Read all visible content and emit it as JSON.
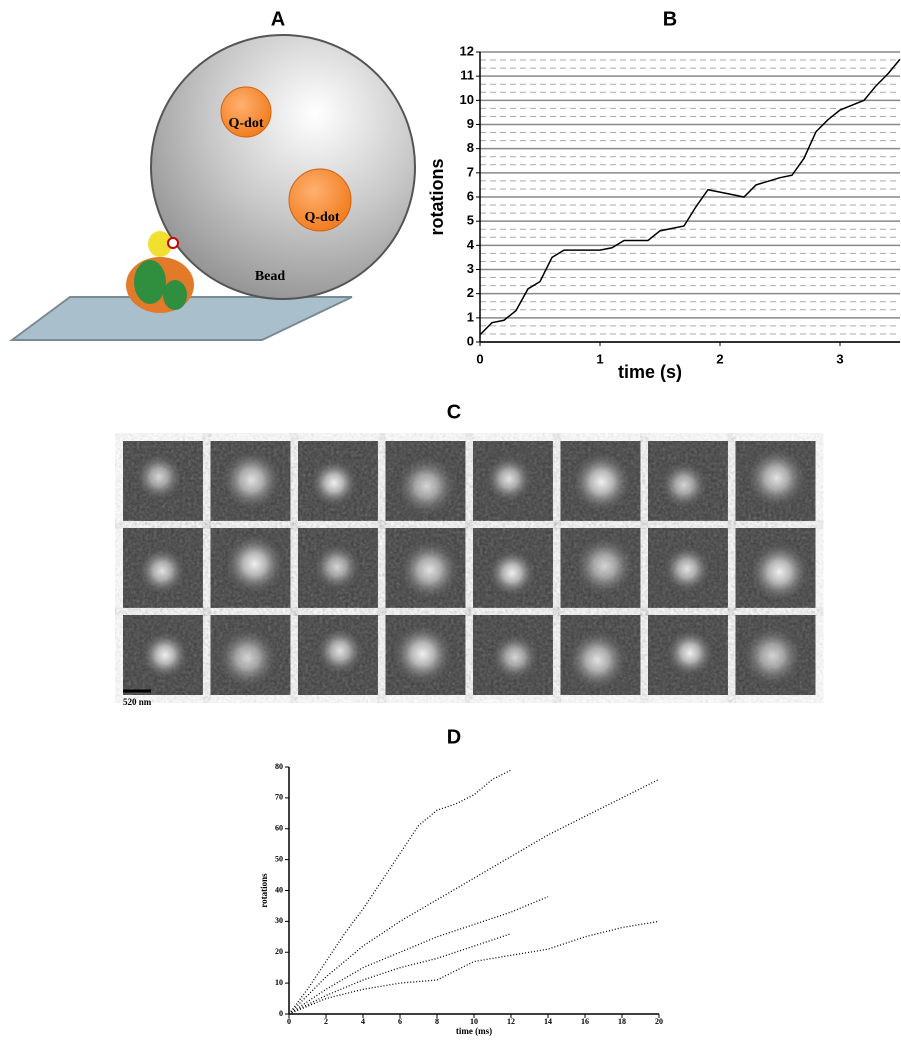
{
  "panels": {
    "a": "A",
    "c": "C"
  },
  "diagram": {
    "qdot_1": "Q-dot",
    "qdot_2": "Q-dot",
    "bead": "Bead"
  },
  "scale_bar": "520 nm",
  "chart_data": [
    {
      "type": "line",
      "title": "B",
      "x_label": "time (s)",
      "y_label": "rotations",
      "xlim": [
        0,
        3.5
      ],
      "xticks": [
        0,
        1,
        2,
        3
      ],
      "ylim": [
        0,
        12
      ],
      "yticks": [
        0,
        1,
        2,
        3,
        4,
        5,
        6,
        7,
        8,
        9,
        10,
        11,
        12
      ],
      "grid": true,
      "minor_grid": 3,
      "line_style": "solid",
      "series": [
        {
          "color": "#000000",
          "x": [
            0,
            0.1,
            0.2,
            0.3,
            0.4,
            0.5,
            0.6,
            0.7,
            0.8,
            1.0,
            1.1,
            1.2,
            1.4,
            1.5,
            1.7,
            1.8,
            1.9,
            2.0,
            2.2,
            2.3,
            2.5,
            2.6,
            2.7,
            2.8,
            2.9,
            3.0,
            3.1,
            3.2,
            3.3,
            3.4,
            3.5
          ],
          "values": [
            0.3,
            0.8,
            0.9,
            1.3,
            2.2,
            2.5,
            3.5,
            3.8,
            3.8,
            3.8,
            3.9,
            4.2,
            4.2,
            4.6,
            4.8,
            5.6,
            6.3,
            6.2,
            6.0,
            6.5,
            6.8,
            6.9,
            7.6,
            8.7,
            9.2,
            9.6,
            9.8,
            10.0,
            10.6,
            11.1,
            11.7
          ]
        }
      ]
    },
    {
      "type": "line",
      "title": "D",
      "x_label": "time (ms)",
      "y_label": "rotations",
      "xlim": [
        0,
        20
      ],
      "xticks": [
        0,
        2,
        4,
        6,
        8,
        10,
        12,
        14,
        16,
        18,
        20
      ],
      "ylim": [
        0,
        80
      ],
      "yticks": [
        0,
        10,
        20,
        30,
        40,
        50,
        60,
        70,
        80
      ],
      "grid": false,
      "line_style": "dotted",
      "series": [
        {
          "color": "#000000",
          "x": [
            0,
            1,
            2,
            3,
            4,
            5,
            6,
            7,
            8,
            9,
            10,
            11,
            12
          ],
          "values": [
            0,
            8,
            17,
            26,
            34,
            43,
            52,
            61,
            66,
            68,
            71,
            76,
            79
          ]
        },
        {
          "color": "#000000",
          "x": [
            0,
            2,
            4,
            6,
            8,
            10,
            12,
            14,
            16,
            18,
            20
          ],
          "values": [
            0,
            12,
            22,
            30,
            37,
            44,
            51,
            58,
            64,
            70,
            76
          ]
        },
        {
          "color": "#000000",
          "x": [
            0,
            2,
            4,
            6,
            8,
            10,
            12,
            14
          ],
          "values": [
            0,
            8,
            15,
            20,
            25,
            29,
            33,
            38
          ]
        },
        {
          "color": "#000000",
          "x": [
            0,
            2,
            4,
            6,
            8,
            10,
            12
          ],
          "values": [
            0,
            6,
            11,
            15,
            18,
            22,
            26
          ]
        },
        {
          "color": "#000000",
          "x": [
            0,
            2,
            4,
            6,
            8,
            10,
            12,
            14,
            16,
            18,
            20
          ],
          "values": [
            0,
            5,
            8,
            10,
            11,
            17,
            19,
            21,
            25,
            28,
            30
          ]
        }
      ]
    }
  ]
}
